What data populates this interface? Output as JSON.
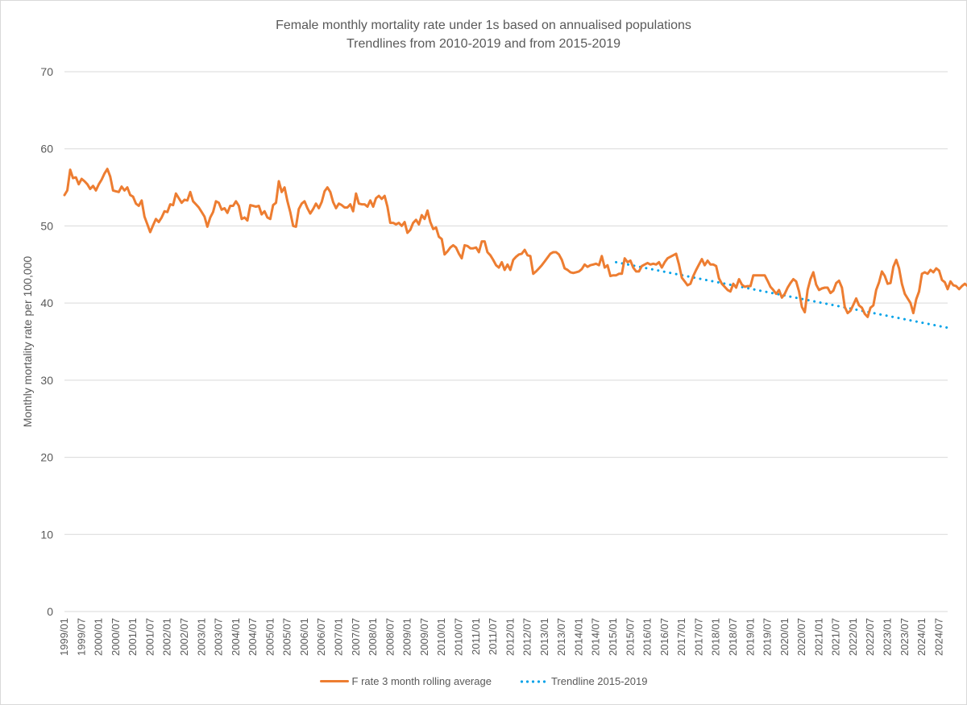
{
  "chart_data": {
    "type": "line",
    "title": "Female monthly mortality rate under 1s based on annualised populations",
    "subtitle": "Trendlines from 2010-2019 and from 2015-2019",
    "xlabel": "",
    "ylabel": "Monthly mortality rate per 100,000",
    "ylim": [
      0,
      70
    ],
    "yticks": [
      0,
      10,
      20,
      30,
      40,
      50,
      60,
      70
    ],
    "grid": true,
    "legend_position": "bottom",
    "x_start": "1999/01",
    "x_end": "2024/10",
    "xtick_labels": [
      "1999/01",
      "1999/07",
      "2000/01",
      "2000/07",
      "2001/01",
      "2001/07",
      "2002/01",
      "2002/07",
      "2003/01",
      "2003/07",
      "2004/01",
      "2004/07",
      "2005/01",
      "2005/07",
      "2006/01",
      "2006/07",
      "2007/01",
      "2007/07",
      "2008/01",
      "2008/07",
      "2009/01",
      "2009/07",
      "2010/01",
      "2010/07",
      "2011/01",
      "2011/07",
      "2012/01",
      "2012/07",
      "2013/01",
      "2013/07",
      "2014/01",
      "2014/07",
      "2015/01",
      "2015/07",
      "2016/01",
      "2016/07",
      "2017/01",
      "2017/07",
      "2018/01",
      "2018/07",
      "2019/01",
      "2019/07",
      "2020/01",
      "2020/07",
      "2021/01",
      "2021/07",
      "2022/01",
      "2022/07",
      "2023/01",
      "2023/07",
      "2024/01",
      "2024/07"
    ],
    "series": [
      {
        "name": "F rate 3  month rolling average",
        "color": "#ed7d31",
        "style": "solid",
        "values": [
          54.0,
          54.6,
          57.3,
          56.2,
          56.3,
          55.4,
          56.1,
          55.8,
          55.4,
          54.8,
          55.2,
          54.6,
          55.4,
          56.0,
          56.8,
          57.4,
          56.4,
          54.6,
          54.5,
          54.4,
          55.1,
          54.6,
          55.0,
          54.0,
          53.8,
          52.9,
          52.6,
          53.3,
          51.2,
          50.2,
          49.2,
          50.1,
          50.9,
          50.5,
          51.1,
          51.9,
          51.8,
          52.8,
          52.7,
          54.2,
          53.6,
          53.0,
          53.4,
          53.3,
          54.4,
          53.2,
          52.8,
          52.4,
          51.8,
          51.2,
          49.9,
          51.1,
          51.8,
          53.2,
          53.0,
          52.1,
          52.3,
          51.7,
          52.6,
          52.6,
          53.2,
          52.6,
          50.9,
          51.1,
          50.7,
          52.7,
          52.6,
          52.5,
          52.6,
          51.5,
          51.9,
          51.1,
          50.9,
          52.7,
          53.0,
          55.8,
          54.4,
          55.0,
          53.2,
          51.8,
          50.0,
          49.9,
          52.2,
          52.9,
          53.2,
          52.3,
          51.6,
          52.2,
          52.9,
          52.3,
          53.1,
          54.5,
          55.0,
          54.4,
          53.1,
          52.3,
          52.9,
          52.7,
          52.4,
          52.4,
          52.8,
          51.9,
          54.2,
          52.9,
          52.8,
          52.8,
          52.5,
          53.3,
          52.5,
          53.6,
          53.9,
          53.5,
          53.9,
          52.5,
          50.4,
          50.4,
          50.2,
          50.4,
          50.0,
          50.5,
          49.1,
          49.5,
          50.4,
          50.8,
          50.2,
          51.4,
          50.9,
          52.0,
          50.5,
          49.6,
          49.8,
          48.6,
          48.3,
          46.3,
          46.7,
          47.2,
          47.5,
          47.2,
          46.4,
          45.8,
          47.5,
          47.4,
          47.1,
          47.1,
          47.2,
          46.6,
          48.0,
          48.0,
          46.6,
          46.2,
          45.6,
          44.9,
          44.6,
          45.3,
          44.3,
          45.0,
          44.3,
          45.6,
          46.0,
          46.3,
          46.4,
          46.9,
          46.2,
          46.1,
          43.8,
          44.1,
          44.5,
          44.9,
          45.4,
          45.9,
          46.4,
          46.6,
          46.6,
          46.3,
          45.6,
          44.5,
          44.3,
          44.0,
          43.9,
          44.0,
          44.1,
          44.4,
          45.0,
          44.7,
          44.9,
          45.0,
          45.1,
          44.9,
          46.1,
          44.6,
          44.9,
          43.5,
          43.6,
          43.6,
          43.8,
          43.8,
          45.8,
          45.3,
          45.5,
          44.6,
          44.1,
          44.1,
          44.8,
          45.0,
          45.2,
          45.0,
          45.1,
          45.0,
          45.3,
          44.6,
          45.3,
          45.8,
          46.0,
          46.2,
          46.4,
          45.0,
          43.3,
          42.8,
          42.3,
          42.5,
          43.5,
          44.3,
          45.0,
          45.7,
          44.9,
          45.5,
          45.0,
          45.0,
          44.8,
          43.2,
          42.5,
          42.1,
          41.7,
          41.5,
          42.5,
          42.0,
          43.1,
          42.4,
          42.1,
          42.2,
          42.2,
          43.6,
          43.6,
          43.6,
          43.6,
          43.6,
          42.9,
          42.1,
          41.7,
          41.2,
          41.7,
          40.7,
          41.2,
          42.0,
          42.6,
          43.1,
          42.8,
          41.5,
          39.5,
          38.8,
          41.7,
          43.1,
          44.0,
          42.4,
          41.7,
          41.9,
          42.0,
          42.0,
          41.3,
          41.6,
          42.6,
          42.9,
          42.0,
          39.5,
          38.7,
          39.0,
          39.8,
          40.6,
          39.7,
          39.4,
          38.6,
          38.2,
          39.4,
          39.7,
          41.7,
          42.7,
          44.1,
          43.5,
          42.5,
          42.6,
          44.7,
          45.6,
          44.5,
          42.5,
          41.2,
          40.6,
          40.0,
          38.7,
          40.5,
          41.5,
          43.8,
          44.0,
          43.8,
          44.3,
          44.0,
          44.5,
          44.2,
          43.0,
          42.7,
          41.8,
          42.8,
          42.3,
          42.2,
          41.8,
          42.2,
          42.5,
          42.2,
          42.0,
          42.0,
          41.7,
          42.5,
          42.2,
          41.9,
          42.4,
          42.9,
          43.5,
          43.2,
          42.6,
          42.6,
          43.0,
          43.2,
          43.2,
          43.1
        ]
      },
      {
        "name": "Trendline 2015-2019",
        "color": "#00a2e8",
        "style": "dotted",
        "x_start": "2015/02",
        "start_value": 45.3,
        "x_end": "2024/10",
        "end_value": 36.8
      }
    ]
  },
  "legend": {
    "items": [
      {
        "label": "F rate 3  month rolling average",
        "color": "#ed7d31"
      },
      {
        "label": "Trendline 2015-2019",
        "color": "#00a2e8"
      }
    ]
  }
}
